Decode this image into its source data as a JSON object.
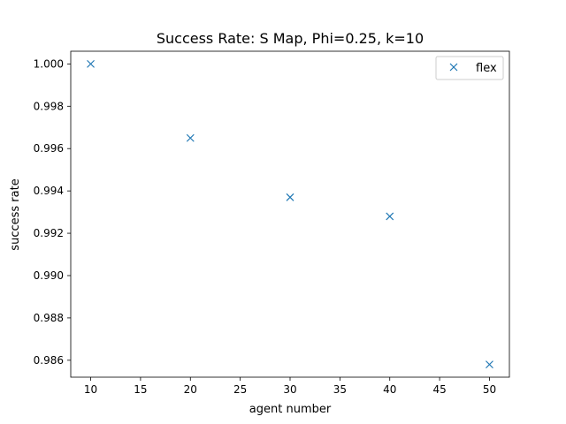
{
  "chart_data": {
    "type": "scatter",
    "title": "Success Rate: S Map, Phi=0.25, k=10",
    "xlabel": "agent number",
    "ylabel": "success rate",
    "xlim": [
      8,
      52
    ],
    "ylim": [
      0.9852,
      1.0006
    ],
    "x_ticks": [
      10,
      15,
      20,
      25,
      30,
      35,
      40,
      45,
      50
    ],
    "y_ticks": [
      0.986,
      0.988,
      0.99,
      0.992,
      0.994,
      0.996,
      0.998,
      1.0
    ],
    "grid": false,
    "legend": "top-right",
    "series": [
      {
        "name": "flex",
        "marker": "x",
        "color": "#1f77b4",
        "x": [
          10,
          20,
          30,
          40,
          50
        ],
        "y": [
          1.0,
          0.9965,
          0.9937,
          0.9928,
          0.9858
        ]
      }
    ]
  }
}
